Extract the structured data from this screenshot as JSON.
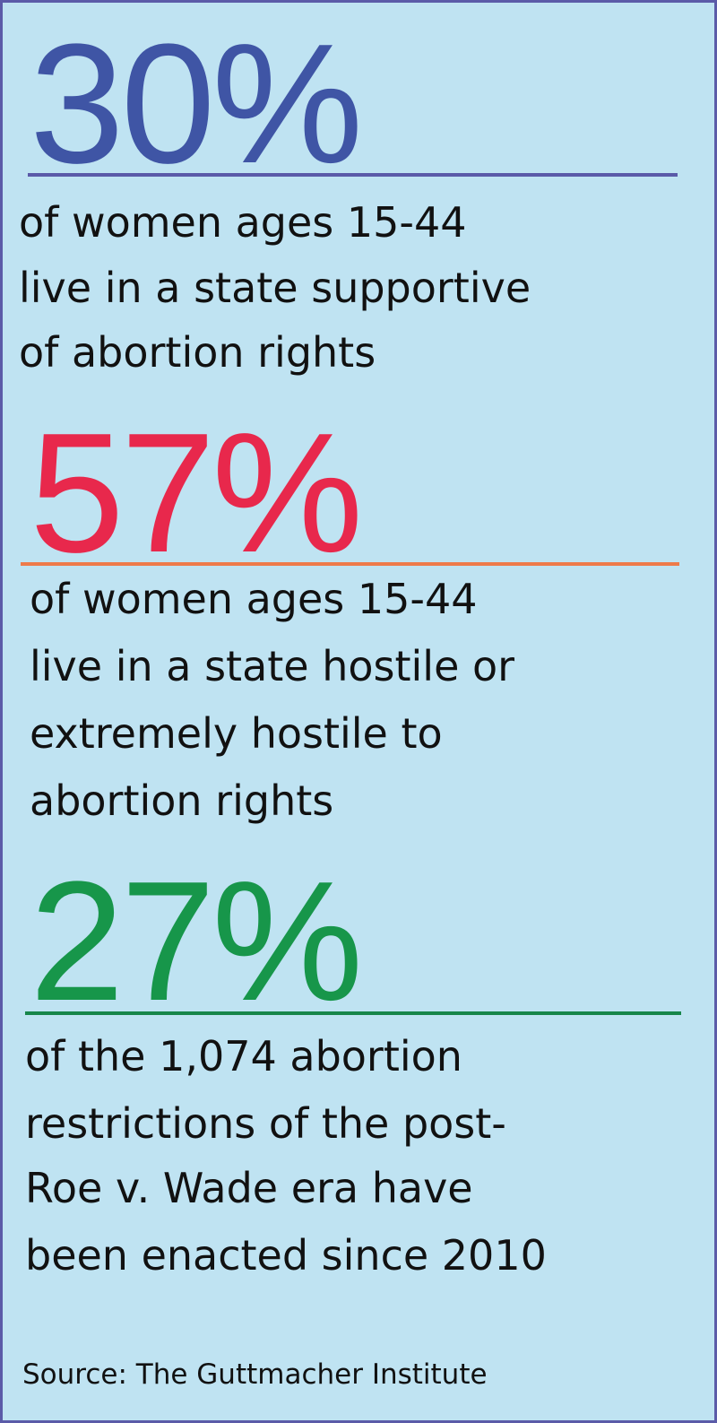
{
  "stats": [
    {
      "value": "30%",
      "lines": [
        "of women ages 15-44",
        "live in a state supportive",
        "of abortion rights"
      ]
    },
    {
      "value": "57%",
      "lines": [
        "of women ages 15-44",
        "live in a state hostile or",
        "extremely hostile to",
        "abortion rights"
      ]
    },
    {
      "value": "27%",
      "lines": [
        "of the 1,074 abortion",
        "restrictions of the post-",
        "Roe v. Wade era have",
        "been enacted since 2010"
      ]
    }
  ],
  "source": "Source: The Guttmacher Institute"
}
